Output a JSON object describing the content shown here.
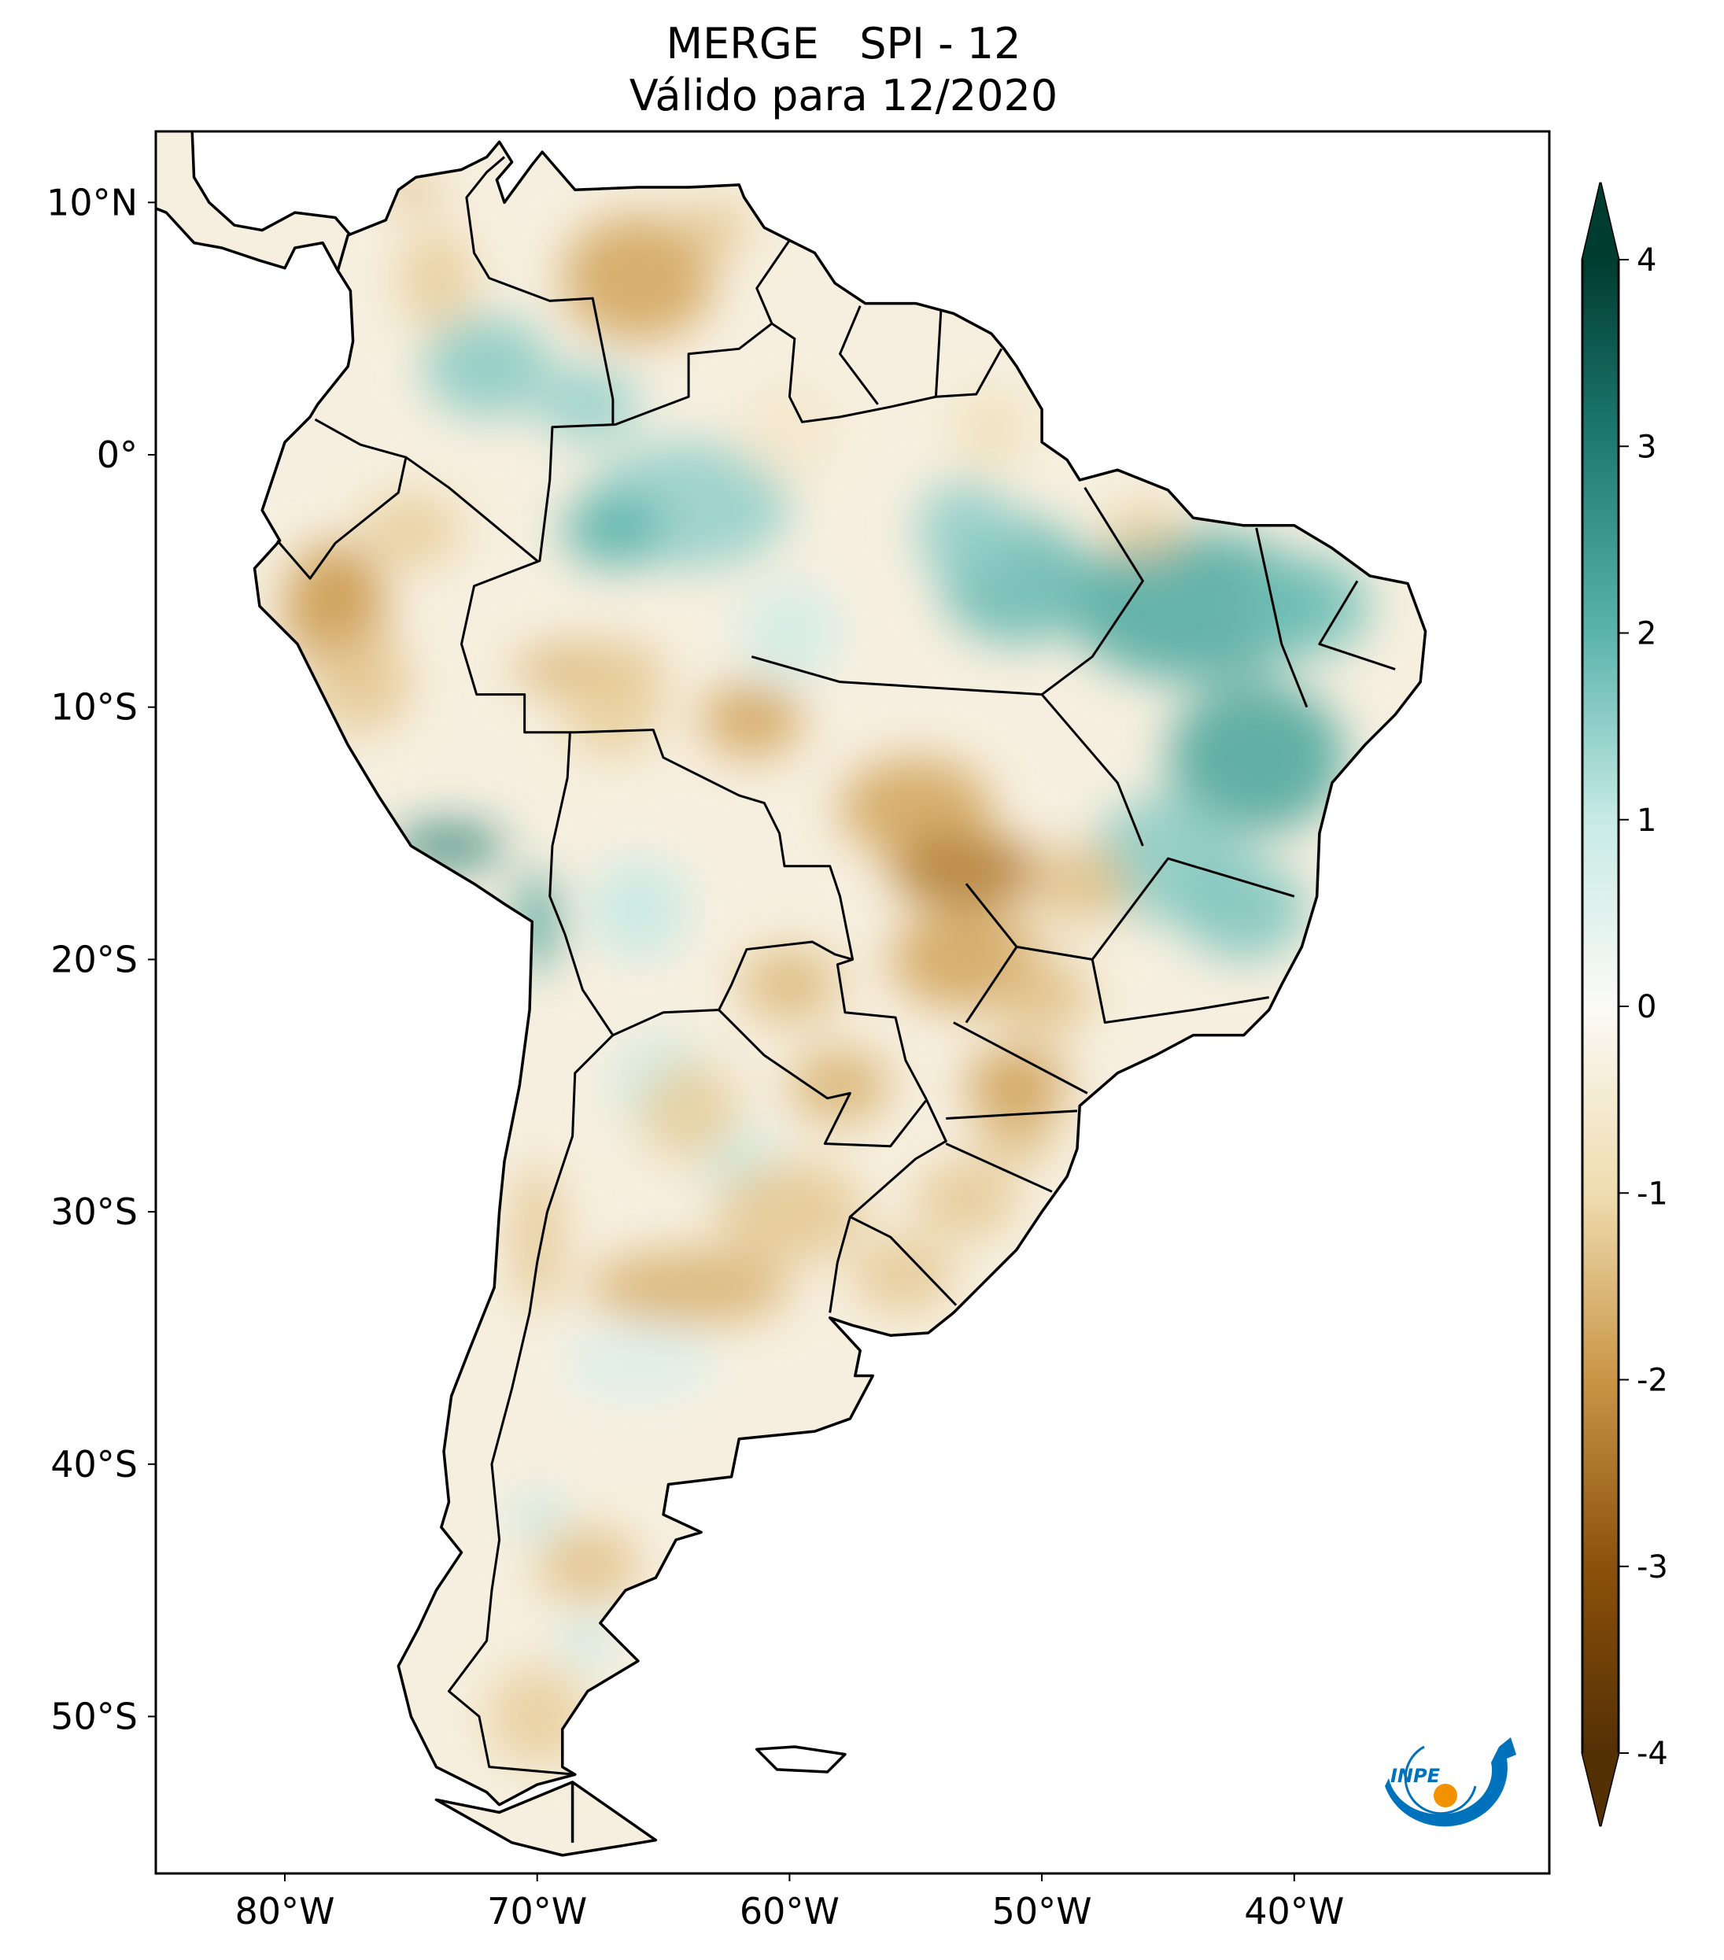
{
  "chart_data": {
    "type": "heatmap",
    "title": "MERGE   SPI - 12",
    "subtitle": "Válido para 12/2020",
    "projection": "equirectangular map of South America",
    "lon_range": [
      -85,
      -30
    ],
    "lat_range": [
      -56,
      13
    ],
    "lon_ticks": [
      {
        "value": -80,
        "label": "80°W"
      },
      {
        "value": -70,
        "label": "70°W"
      },
      {
        "value": -60,
        "label": "60°W"
      },
      {
        "value": -50,
        "label": "50°W"
      },
      {
        "value": -40,
        "label": "40°W"
      }
    ],
    "lat_ticks": [
      {
        "value": 10,
        "label": "10°N"
      },
      {
        "value": 0,
        "label": "0°"
      },
      {
        "value": -10,
        "label": "10°S"
      },
      {
        "value": -20,
        "label": "20°S"
      },
      {
        "value": -30,
        "label": "30°S"
      },
      {
        "value": -40,
        "label": "40°S"
      },
      {
        "value": -50,
        "label": "50°S"
      }
    ],
    "colorbar": {
      "orientation": "vertical",
      "placement": "right",
      "range": [
        -4,
        4
      ],
      "extend": "both",
      "colormap": "BrBG",
      "ticks": [
        {
          "value": 4,
          "label": "4"
        },
        {
          "value": 3,
          "label": "3"
        },
        {
          "value": 2,
          "label": "2"
        },
        {
          "value": 1,
          "label": "1"
        },
        {
          "value": 0,
          "label": "0"
        },
        {
          "value": -1,
          "label": "-1"
        },
        {
          "value": -2,
          "label": "-2"
        },
        {
          "value": -3,
          "label": "-3"
        },
        {
          "value": -4,
          "label": "-4"
        }
      ],
      "colors": [
        "#543005",
        "#8c510a",
        "#c99545",
        "#efdcaf",
        "#fbfaf6",
        "#c7eae5",
        "#5ab4ac",
        "#1f7d74",
        "#003c30"
      ]
    },
    "regions_wet": [
      "Northeast Brazil",
      "Amazonas north",
      "Peru southern coast",
      "northern Chile"
    ],
    "regions_dry": [
      "Venezuela",
      "Peru Andes",
      "Mato Grosso / Goiás",
      "Paraná / Santa Catarina",
      "central Argentina",
      "Uruguay"
    ]
  },
  "logo": {
    "text": "INPE",
    "colors": {
      "arrow": "#0072bc",
      "dot": "#f39200"
    }
  }
}
